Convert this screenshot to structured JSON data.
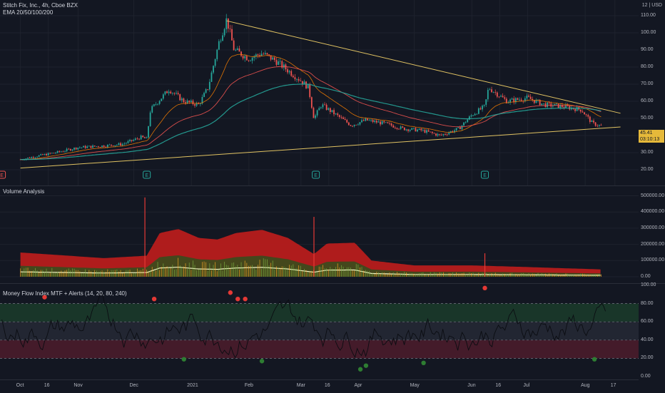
{
  "header": {
    "symbol_line": "Stitch Fix, Inc., 4h, Cboe BZX",
    "ema_line": "EMA 20/50/100/200",
    "currency": "12 | USD"
  },
  "price_axis": {
    "ticks": [
      "110.00",
      "100.00",
      "90.00",
      "80.00",
      "70.00",
      "60.00",
      "50.00",
      "40.00",
      "30.00",
      "20.00"
    ]
  },
  "last_price": {
    "value": "45.41",
    "countdown": "03:10:13"
  },
  "volume_panel": {
    "title": "Volume Analysis",
    "ticks": [
      "500000.00",
      "400000.00",
      "300000.00",
      "200000.00",
      "100000.00",
      "0.00"
    ]
  },
  "mfi_panel": {
    "title": "Money Flow Index MTF + Alerts (14, 20, 80, 240)",
    "ticks": [
      "100.00",
      "80.00",
      "60.00",
      "40.00",
      "20.00",
      "0.00"
    ]
  },
  "time_axis": {
    "labels": [
      "Oct",
      "16",
      "Nov",
      "Dec",
      "2021",
      "Feb",
      "Mar",
      "16",
      "Apr",
      "May",
      "Jun",
      "16",
      "Jul",
      "Aug",
      "17"
    ]
  },
  "earnings_markers": [
    "E",
    "E",
    "E",
    "E"
  ],
  "colors": {
    "bg": "#131722",
    "up": "#26a69a",
    "down": "#ef5350",
    "trend": "#e0c262",
    "ema_fast": "#ef5350",
    "ema_slow": "#26a69a",
    "volume": "#b71c1c",
    "overbought": "#1b5e20",
    "oversold": "#880e4f",
    "signal_red": "#e53935",
    "signal_green": "#2e7d32"
  },
  "chart_data": [
    {
      "type": "candlestick",
      "title": "Stitch Fix, Inc., 4h, Cboe BZX",
      "x": [
        "2020-10",
        "2020-10-16",
        "2020-11",
        "2020-12",
        "2021-01",
        "2021-02",
        "2021-03",
        "2021-03-16",
        "2021-04",
        "2021-05",
        "2021-06",
        "2021-06-16",
        "2021-07",
        "2021-08",
        "2021-08-17"
      ],
      "close_path": [
        [
          "2020-10-01",
          26
        ],
        [
          "2020-10-10",
          28
        ],
        [
          "2020-10-20",
          30
        ],
        [
          "2020-11-01",
          33
        ],
        [
          "2020-11-15",
          34
        ],
        [
          "2020-11-25",
          35
        ],
        [
          "2020-12-05",
          39
        ],
        [
          "2020-12-08",
          38
        ],
        [
          "2020-12-10",
          55
        ],
        [
          "2020-12-20",
          67
        ],
        [
          "2020-12-28",
          60
        ],
        [
          "2021-01-05",
          58
        ],
        [
          "2021-01-10",
          68
        ],
        [
          "2021-01-16",
          95
        ],
        [
          "2021-01-20",
          108
        ],
        [
          "2021-01-24",
          90
        ],
        [
          "2021-02-01",
          85
        ],
        [
          "2021-02-08",
          88
        ],
        [
          "2021-02-15",
          84
        ],
        [
          "2021-02-22",
          78
        ],
        [
          "2021-03-01",
          72
        ],
        [
          "2021-03-05",
          68
        ],
        [
          "2021-03-08",
          50
        ],
        [
          "2021-03-12",
          58
        ],
        [
          "2021-03-20",
          52
        ],
        [
          "2021-03-28",
          46
        ],
        [
          "2021-04-05",
          49
        ],
        [
          "2021-04-15",
          47
        ],
        [
          "2021-04-25",
          44
        ],
        [
          "2021-05-05",
          43
        ],
        [
          "2021-05-15",
          40
        ],
        [
          "2021-05-25",
          44
        ],
        [
          "2021-06-01",
          52
        ],
        [
          "2021-06-08",
          57
        ],
        [
          "2021-06-10",
          68
        ],
        [
          "2021-06-20",
          60
        ],
        [
          "2021-07-01",
          62
        ],
        [
          "2021-07-10",
          58
        ],
        [
          "2021-07-20",
          57
        ],
        [
          "2021-07-30",
          55
        ],
        [
          "2021-08-05",
          47
        ],
        [
          "2021-08-10",
          45.41
        ]
      ],
      "trendlines": [
        {
          "from": [
            "2021-01-20",
            107
          ],
          "to": [
            "2021-08-20",
            53
          ]
        },
        {
          "from": [
            "2020-10-01",
            21
          ],
          "to": [
            "2021-08-20",
            45
          ]
        }
      ],
      "last": 45.41,
      "ylim": [
        15,
        115
      ]
    },
    {
      "type": "area",
      "title": "Volume Analysis",
      "envelope": [
        [
          "2020-10-01",
          150000
        ],
        [
          "2020-11-15",
          115000
        ],
        [
          "2020-12-08",
          130000
        ],
        [
          "2020-12-15",
          270000
        ],
        [
          "2020-12-25",
          295000
        ],
        [
          "2021-01-05",
          240000
        ],
        [
          "2021-01-15",
          230000
        ],
        [
          "2021-01-25",
          270000
        ],
        [
          "2021-02-08",
          290000
        ],
        [
          "2021-02-22",
          240000
        ],
        [
          "2021-03-08",
          140000
        ],
        [
          "2021-03-15",
          205000
        ],
        [
          "2021-03-30",
          210000
        ],
        [
          "2021-04-08",
          100000
        ],
        [
          "2021-05-01",
          70000
        ],
        [
          "2021-06-01",
          70000
        ],
        [
          "2021-07-01",
          60000
        ],
        [
          "2021-08-10",
          45000
        ]
      ],
      "spikes": [
        [
          "2020-12-07",
          490000
        ],
        [
          "2021-03-08",
          370000
        ],
        [
          "2021-06-08",
          145000
        ]
      ],
      "ylim": [
        0,
        520000
      ]
    },
    {
      "type": "line",
      "title": "Money Flow Index MTF + Alerts (14, 20, 80, 240)",
      "levels": [
        20,
        40,
        60,
        80
      ],
      "overbought_signals": [
        [
          "2020-10-14",
          87
        ],
        [
          "2020-12-12",
          85
        ],
        [
          "2021-01-22",
          92
        ],
        [
          "2021-01-26",
          85
        ],
        [
          "2021-01-30",
          85
        ],
        [
          "2021-06-08",
          97
        ]
      ],
      "oversold_signals": [
        [
          "2020-12-28",
          19
        ],
        [
          "2021-02-08",
          17
        ],
        [
          "2021-04-02",
          8
        ],
        [
          "2021-04-05",
          12
        ],
        [
          "2021-05-06",
          15
        ],
        [
          "2021-08-06",
          19
        ]
      ],
      "ylim": [
        0,
        100
      ]
    }
  ]
}
